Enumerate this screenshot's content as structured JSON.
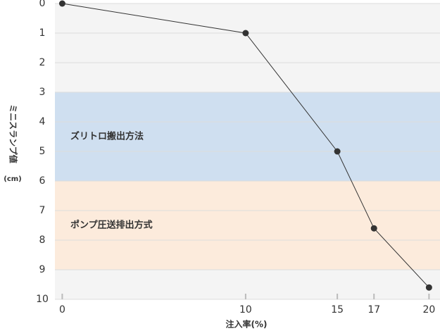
{
  "chart_data": {
    "type": "line",
    "x_label": "注入率(%)",
    "y_label": "ミニスランプ値",
    "y_unit": "(cm)",
    "x": [
      0,
      10,
      15,
      17,
      20
    ],
    "values": [
      0,
      1,
      5,
      7.6,
      9.6
    ],
    "color": "#333333",
    "xlim": [
      -0.4,
      20.6
    ],
    "xticks": [
      0,
      10,
      15,
      17,
      20
    ],
    "ylim": [
      0,
      10
    ],
    "yticks": [
      0,
      1,
      2,
      3,
      4,
      5,
      6,
      7,
      8,
      9,
      10
    ],
    "y_inverted": true,
    "grid": true,
    "background": "#f4f4f4",
    "bands": [
      {
        "label": "ズリトロ搬出方法",
        "from": 3,
        "to": 6,
        "color": "#cfdff0",
        "text_color": "#2a5a9a"
      },
      {
        "label": "ポンプ圧送排出方式",
        "from": 6,
        "to": 9,
        "color": "#fcebdc",
        "text_color": "#e8642a"
      }
    ]
  }
}
